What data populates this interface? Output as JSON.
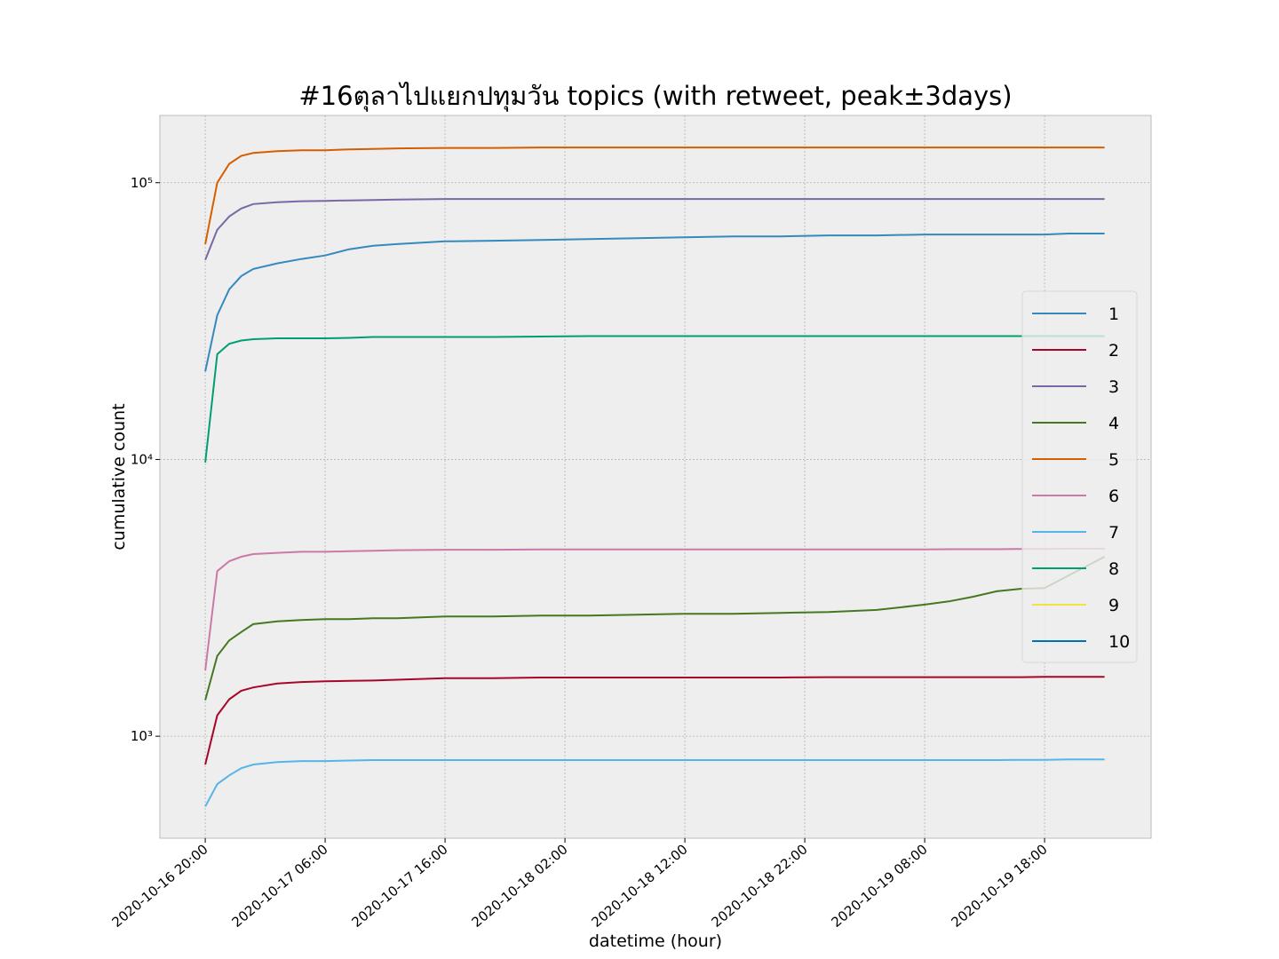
{
  "chart_data": {
    "type": "line",
    "title": "#16ตุลาไปแยกปทุมวัน topics (with retweet, peak±3days)",
    "x_label": "datetime (hour)",
    "y_label": "cumulative count",
    "y_scale": "log",
    "grid": true,
    "legend_position": "center right",
    "x": [
      "2020-10-16 20:00",
      "2020-10-16 21:00",
      "2020-10-16 22:00",
      "2020-10-16 23:00",
      "2020-10-17 00:00",
      "2020-10-17 02:00",
      "2020-10-17 04:00",
      "2020-10-17 06:00",
      "2020-10-17 08:00",
      "2020-10-17 10:00",
      "2020-10-17 12:00",
      "2020-10-17 16:00",
      "2020-10-17 20:00",
      "2020-10-18 00:00",
      "2020-10-18 04:00",
      "2020-10-18 08:00",
      "2020-10-18 12:00",
      "2020-10-18 16:00",
      "2020-10-18 20:00",
      "2020-10-19 00:00",
      "2020-10-19 04:00",
      "2020-10-19 08:00",
      "2020-10-19 10:00",
      "2020-10-19 12:00",
      "2020-10-19 14:00",
      "2020-10-19 16:00",
      "2020-10-19 18:00",
      "2020-10-19 20:00",
      "2020-10-19 23:00"
    ],
    "xlim": [
      "2020-10-16 16:13",
      "2020-10-20 02:53"
    ],
    "xticks": [
      "2020-10-16 20:00",
      "2020-10-17 06:00",
      "2020-10-17 16:00",
      "2020-10-18 02:00",
      "2020-10-18 12:00",
      "2020-10-18 22:00",
      "2020-10-19 08:00",
      "2020-10-19 18:00"
    ],
    "ylim": [
      428,
      175000
    ],
    "yticks": [
      {
        "value": 1000,
        "label": "10³"
      },
      {
        "value": 10000,
        "label": "10⁴"
      },
      {
        "value": 100000,
        "label": "10⁵"
      }
    ],
    "series": [
      {
        "name": "1",
        "color": "#348ABD",
        "values": [
          20800,
          33200,
          41200,
          46000,
          48800,
          51100,
          53000,
          54600,
          57500,
          59200,
          60000,
          61400,
          61700,
          62100,
          62600,
          63000,
          63500,
          64000,
          64000,
          64500,
          64500,
          65000,
          65000,
          65000,
          65000,
          65000,
          65000,
          65500,
          65500
        ]
      },
      {
        "name": "2",
        "color": "#A60628",
        "values": [
          790,
          1190,
          1360,
          1460,
          1500,
          1550,
          1570,
          1580,
          1585,
          1590,
          1600,
          1620,
          1620,
          1630,
          1630,
          1630,
          1630,
          1630,
          1630,
          1635,
          1635,
          1635,
          1635,
          1635,
          1635,
          1635,
          1640,
          1640,
          1640
        ]
      },
      {
        "name": "3",
        "color": "#7A68A6",
        "values": [
          52600,
          67600,
          75500,
          80700,
          83700,
          85000,
          85700,
          86000,
          86300,
          86600,
          86900,
          87300,
          87300,
          87300,
          87300,
          87300,
          87300,
          87300,
          87300,
          87300,
          87300,
          87300,
          87300,
          87300,
          87300,
          87300,
          87300,
          87300,
          87300
        ]
      },
      {
        "name": "4",
        "color": "#467821",
        "values": [
          1350,
          1950,
          2220,
          2380,
          2540,
          2600,
          2630,
          2650,
          2650,
          2670,
          2670,
          2710,
          2710,
          2730,
          2730,
          2750,
          2770,
          2770,
          2790,
          2810,
          2860,
          2990,
          3070,
          3190,
          3340,
          3410,
          3430,
          3810,
          4450
        ]
      },
      {
        "name": "5",
        "color": "#D55E00",
        "values": [
          60000,
          100000,
          117000,
          125000,
          128000,
          130000,
          131000,
          131000,
          132000,
          132500,
          133000,
          133500,
          133500,
          134000,
          134000,
          134000,
          134000,
          134000,
          134000,
          134000,
          134000,
          134000,
          134000,
          134000,
          134000,
          134000,
          134000,
          134000,
          134000
        ]
      },
      {
        "name": "6",
        "color": "#CC79A7",
        "values": [
          1730,
          3950,
          4290,
          4450,
          4550,
          4600,
          4640,
          4640,
          4660,
          4680,
          4700,
          4720,
          4720,
          4730,
          4730,
          4730,
          4730,
          4730,
          4730,
          4730,
          4730,
          4730,
          4740,
          4740,
          4740,
          4750,
          4750,
          4760,
          4760
        ]
      },
      {
        "name": "7",
        "color": "#56B4E9",
        "values": [
          557,
          671,
          722,
          766,
          790,
          807,
          813,
          813,
          817,
          820,
          820,
          820,
          820,
          820,
          820,
          820,
          820,
          820,
          820,
          820,
          820,
          820,
          820,
          820,
          820,
          822,
          822,
          825,
          825
        ]
      },
      {
        "name": "8",
        "color": "#009E73",
        "values": [
          9750,
          24000,
          26200,
          26900,
          27200,
          27400,
          27400,
          27400,
          27500,
          27700,
          27700,
          27700,
          27700,
          27800,
          27900,
          27900,
          27900,
          27900,
          27900,
          27900,
          27900,
          27900,
          27900,
          27900,
          27900,
          27900,
          27900,
          27900,
          27900
        ]
      },
      {
        "name": "9",
        "color": "#F0E442",
        "values": [
          null,
          null,
          null,
          null,
          null,
          null,
          null,
          null,
          null,
          null,
          null,
          null,
          null,
          null,
          null,
          null,
          null,
          null,
          null,
          null,
          null,
          null,
          null,
          null,
          null,
          null,
          null,
          null,
          null
        ]
      },
      {
        "name": "10",
        "color": "#0072B2",
        "values": [
          null,
          null,
          null,
          null,
          null,
          null,
          null,
          null,
          null,
          null,
          null,
          null,
          null,
          null,
          null,
          null,
          null,
          null,
          null,
          null,
          null,
          null,
          null,
          null,
          null,
          null,
          null,
          null,
          null
        ]
      }
    ]
  }
}
